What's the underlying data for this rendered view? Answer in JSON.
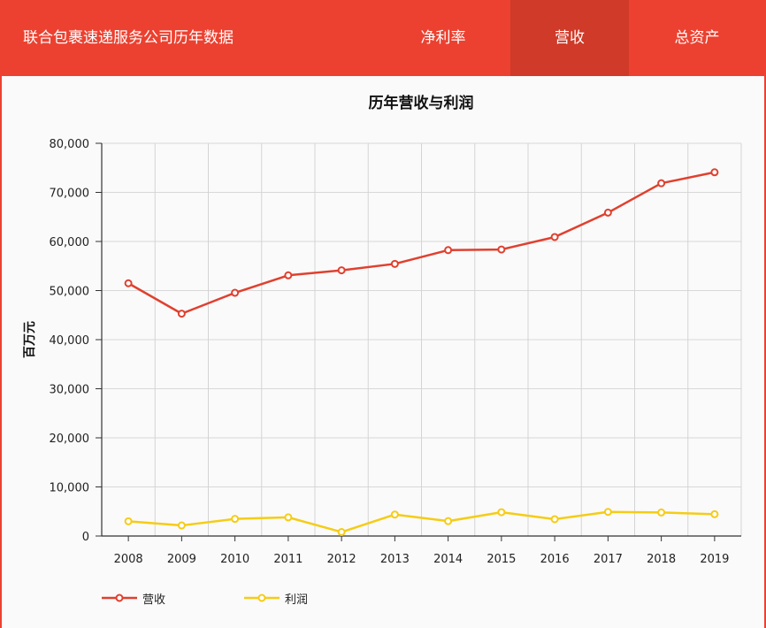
{
  "header": {
    "title": "联合包裹速递服务公司历年数据",
    "tabs": [
      {
        "label": "净利率",
        "active": false
      },
      {
        "label": "营收",
        "active": true
      },
      {
        "label": "总资产",
        "active": false
      }
    ],
    "colors": {
      "bar": "#ec4130",
      "active_tab": "#d03a28"
    }
  },
  "chart": {
    "title": "历年营收与利润",
    "ylabel": "百万元",
    "legend": [
      {
        "label": "营收",
        "color": "#e0402f"
      },
      {
        "label": "利润",
        "color": "#f5cc16"
      }
    ]
  },
  "chart_data": {
    "type": "line",
    "title": "历年营收与利润",
    "xlabel": "",
    "ylabel": "百万元",
    "categories": [
      "2008",
      "2009",
      "2010",
      "2011",
      "2012",
      "2013",
      "2014",
      "2015",
      "2016",
      "2017",
      "2018",
      "2019"
    ],
    "series": [
      {
        "name": "营收",
        "color": "#e0402f",
        "values": [
          51486,
          45297,
          49545,
          53105,
          54127,
          55438,
          58232,
          58363,
          60906,
          65872,
          71861,
          74094
        ]
      },
      {
        "name": "利润",
        "color": "#f5cc16",
        "values": [
          3003,
          2152,
          3488,
          3804,
          807,
          4372,
          3032,
          4844,
          3431,
          4910,
          4791,
          4440
        ]
      }
    ],
    "ylim": [
      0,
      80000
    ],
    "yticks": [
      "0",
      "10,000",
      "20,000",
      "30,000",
      "40,000",
      "50,000",
      "60,000",
      "70,000",
      "80,000"
    ],
    "grid": true,
    "legend_position": "bottom-left"
  }
}
